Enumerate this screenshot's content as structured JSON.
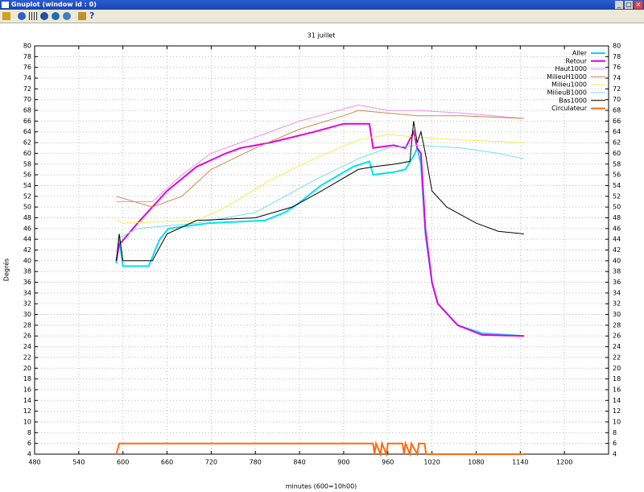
{
  "window": {
    "title": "Gnuplot (window id : 0)",
    "controls": [
      "_",
      "□",
      "×"
    ]
  },
  "chart_data": {
    "type": "line",
    "title": "31 juillet",
    "xlabel": "minutes (600=10h00)",
    "ylabel": "Degrés",
    "xlim": [
      480,
      1260
    ],
    "xticks": [
      480,
      540,
      600,
      660,
      720,
      780,
      840,
      900,
      960,
      1020,
      1080,
      1140,
      1200
    ],
    "ylim": [
      4,
      80
    ],
    "yticks": [
      4,
      6,
      8,
      10,
      12,
      14,
      16,
      18,
      20,
      22,
      24,
      26,
      28,
      30,
      32,
      34,
      36,
      38,
      40,
      42,
      44,
      46,
      48,
      50,
      52,
      54,
      56,
      58,
      60,
      62,
      64,
      66,
      68,
      70,
      72,
      74,
      76,
      78,
      80
    ],
    "y2lim": [
      4,
      80
    ],
    "y2ticks": [
      4,
      6,
      8,
      10,
      12,
      14,
      16,
      18,
      20,
      22,
      24,
      26,
      28,
      30,
      32,
      34,
      36,
      38,
      40,
      42,
      44,
      46,
      48,
      50,
      52,
      54,
      56,
      58,
      60,
      62,
      64,
      66,
      68,
      70,
      72,
      74,
      76,
      78,
      80
    ],
    "grid": true,
    "legend": "top-right",
    "series": [
      {
        "name": "Aller",
        "color": "#00e0f0",
        "x": [
          591,
          595,
          600,
          635,
          650,
          662,
          717,
          793,
          820,
          837,
          869,
          913,
          935,
          940,
          968,
          984,
          995,
          1000,
          1005,
          1011,
          1020,
          1028,
          1055,
          1088,
          1145
        ],
        "values": [
          39.5,
          44,
          39,
          39,
          44,
          46,
          47,
          47.5,
          49,
          50.5,
          54,
          57.5,
          58.5,
          56,
          56.5,
          57,
          59.5,
          61,
          58,
          45,
          36,
          32,
          28,
          26.5,
          26
        ]
      },
      {
        "name": "Retour",
        "color": "#e000e0",
        "x": [
          591,
          595,
          620,
          660,
          700,
          740,
          760,
          800,
          860,
          900,
          935,
          940,
          968,
          984,
          995,
          1000,
          1005,
          1011,
          1020,
          1028,
          1055,
          1088,
          1145
        ],
        "values": [
          40,
          43,
          47,
          53,
          57.5,
          60,
          61,
          62,
          64,
          65.5,
          65.5,
          61,
          61.5,
          61,
          64,
          61,
          60,
          46,
          36,
          32,
          28,
          26.2,
          26
        ]
      },
      {
        "name": "Haut1000",
        "color": "#e890e8",
        "x": [
          591,
          640,
          680,
          720,
          780,
          840,
          880,
          920,
          960,
          1000,
          1060,
          1145
        ],
        "values": [
          51,
          51,
          56,
          60,
          63,
          66,
          67.5,
          69,
          68,
          68,
          67.5,
          66.5
        ]
      },
      {
        "name": "MilieuH1000",
        "color": "#d08850",
        "x": [
          591,
          640,
          680,
          720,
          780,
          840,
          900,
          920,
          960,
          1000,
          1060,
          1145
        ],
        "values": [
          52,
          50,
          52,
          57,
          61,
          64.5,
          67,
          68,
          67.5,
          67,
          67,
          66.5
        ]
      },
      {
        "name": "Milieu1000",
        "color": "#f4ec50",
        "x": [
          591,
          600,
          700,
          740,
          800,
          860,
          920,
          960,
          1000,
          1060,
          1145
        ],
        "values": [
          47.5,
          47,
          47.5,
          50,
          55,
          59,
          62.5,
          63.5,
          63,
          62.5,
          62
        ]
      },
      {
        "name": "MilieuB1000",
        "color": "#70e0e8",
        "x": [
          591,
          620,
          700,
          780,
          820,
          860,
          920,
          960,
          1000,
          1060,
          1110,
          1145
        ],
        "values": [
          44,
          46,
          47,
          49,
          52,
          55,
          59,
          61,
          61.5,
          61,
          60,
          59
        ]
      },
      {
        "name": "Bas1000",
        "color": "#000000",
        "x": [
          591,
          595,
          600,
          640,
          660,
          700,
          780,
          830,
          870,
          920,
          940,
          970,
          990,
          995,
          1000,
          1005,
          1011,
          1020,
          1040,
          1080,
          1110,
          1145
        ],
        "values": [
          40,
          45,
          40,
          40,
          45,
          47.5,
          48,
          50,
          53,
          57,
          57.5,
          58,
          58.5,
          66,
          62,
          64,
          60,
          53,
          50,
          47,
          45.5,
          45
        ]
      },
      {
        "name": "Circulateur",
        "color": "#ff6a10",
        "x": [
          591,
          595,
          940,
          942,
          944,
          950,
          952,
          958,
          960,
          980,
          982,
          984,
          990,
          992,
          1000,
          1002,
          1010,
          1012,
          1145
        ],
        "values": [
          4,
          6,
          6,
          4,
          6,
          4,
          6,
          4,
          6,
          6,
          4,
          6,
          4,
          6,
          4,
          6,
          6,
          4,
          4
        ]
      }
    ]
  }
}
